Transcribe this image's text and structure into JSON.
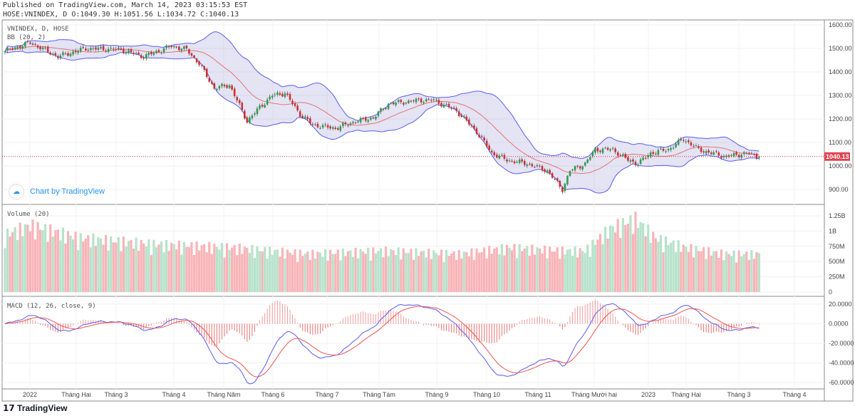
{
  "header": {
    "published": "Published on TradingView.com, March 14, 2023 03:15:53 EST",
    "ohlc": "HOSE:VNINDEX, D O:1049.30 H:1051.56 L:1034.72 C:1040.13"
  },
  "legend": {
    "symbol": "VNINDEX, D, HOSE",
    "bb": "BB (20, 2)",
    "volume": "Volume (20)",
    "macd": "MACD (12, 26, close, 9)"
  },
  "watermark": "Chart by TradingView",
  "footer_logo": "TradingView",
  "colors": {
    "up": "#26a69a",
    "down": "#ef5350",
    "band": "#5b5bf0",
    "basis": "#e57373",
    "macd": "#5b5bf0",
    "signal": "#ef5350"
  },
  "chart_data": {
    "type": "candlestick",
    "last_price": "1040.13",
    "price_ticks": [
      "1600.00",
      "1500.00",
      "1400.00",
      "1300.00",
      "1200.00",
      "1100.00",
      "1000.00",
      "900.00"
    ],
    "volume_ticks": [
      "1.25B",
      "1B",
      "750M",
      "500M",
      "250M",
      "0"
    ],
    "macd_ticks": [
      "20.0000",
      "0.0000",
      "-20.0000",
      "-40.0000",
      "-60.0000"
    ],
    "time_ticks": [
      "2022",
      "Tháng Hai",
      "Tháng 3",
      "Tháng 4",
      "Tháng Năm",
      "Tháng 6",
      "Tháng 7",
      "Tháng Tám",
      "Tháng 9",
      "Tháng 10",
      "Tháng 11",
      "Tháng Mười hai",
      "2023",
      "Tháng Hai",
      "Tháng 3",
      "Tháng 4"
    ],
    "price_range": [
      870,
      1620
    ],
    "close_keypoints": [
      [
        0,
        1488
      ],
      [
        10,
        1525
      ],
      [
        21,
        1465
      ],
      [
        32,
        1500
      ],
      [
        46,
        1495
      ],
      [
        55,
        1465
      ],
      [
        66,
        1510
      ],
      [
        72,
        1495
      ],
      [
        77,
        1435
      ],
      [
        83,
        1330
      ],
      [
        89,
        1345
      ],
      [
        96,
        1190
      ],
      [
        101,
        1250
      ],
      [
        106,
        1300
      ],
      [
        111,
        1310
      ],
      [
        117,
        1220
      ],
      [
        122,
        1175
      ],
      [
        131,
        1160
      ],
      [
        139,
        1190
      ],
      [
        146,
        1205
      ],
      [
        152,
        1265
      ],
      [
        165,
        1280
      ],
      [
        170,
        1280
      ],
      [
        179,
        1235
      ],
      [
        187,
        1145
      ],
      [
        193,
        1055
      ],
      [
        199,
        1025
      ],
      [
        207,
        1010
      ],
      [
        215,
        980
      ],
      [
        221,
        900
      ],
      [
        224,
        980
      ],
      [
        230,
        1010
      ],
      [
        234,
        1070
      ],
      [
        241,
        1070
      ],
      [
        247,
        1025
      ],
      [
        251,
        1010
      ],
      [
        256,
        1055
      ],
      [
        263,
        1070
      ],
      [
        269,
        1115
      ],
      [
        275,
        1070
      ],
      [
        280,
        1055
      ],
      [
        286,
        1040
      ],
      [
        294,
        1055
      ],
      [
        299,
        1040
      ]
    ],
    "volume_keypoints_millions": [
      [
        0,
        900
      ],
      [
        10,
        1050
      ],
      [
        30,
        850
      ],
      [
        60,
        750
      ],
      [
        90,
        700
      ],
      [
        120,
        600
      ],
      [
        150,
        650
      ],
      [
        180,
        600
      ],
      [
        200,
        700
      ],
      [
        220,
        650
      ],
      [
        230,
        650
      ],
      [
        240,
        1000
      ],
      [
        250,
        1150
      ],
      [
        258,
        850
      ],
      [
        270,
        700
      ],
      [
        285,
        600
      ],
      [
        299,
        600
      ]
    ]
  }
}
